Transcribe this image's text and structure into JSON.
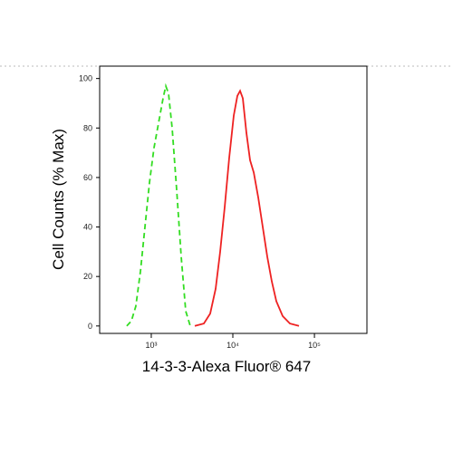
{
  "chart_data": {
    "type": "line",
    "xlabel": "14-3-3-Alexa Fluor® 647",
    "ylabel": "Cell Counts (% Max)",
    "xscale": "log",
    "xlim": [
      233,
      440000
    ],
    "ylim": [
      -3,
      105
    ],
    "xticks": [
      {
        "value": 1000,
        "label": "10³"
      },
      {
        "value": 10000,
        "label": "10⁴"
      },
      {
        "value": 100000,
        "label": "10⁵"
      }
    ],
    "yticks": [
      0,
      20,
      40,
      60,
      80,
      100
    ],
    "series": [
      {
        "color": "#33dd22",
        "dash": true,
        "x": [
          501,
          570,
          647,
          736,
          836,
          950,
          1080,
          1227,
          1394,
          1506,
          1626,
          1801,
          2048,
          2328,
          2644,
          3005
        ],
        "values": [
          0,
          2,
          8,
          22,
          40,
          58,
          72,
          82,
          92,
          97,
          94,
          80,
          55,
          28,
          6,
          0
        ]
      },
      {
        "color": "#ee2222",
        "dash": false,
        "x": [
          3415,
          4410,
          5275,
          6150,
          6985,
          7943,
          9030,
          10260,
          11370,
          12270,
          13250,
          14680,
          16260,
          18030,
          20470,
          23270,
          26430,
          30050,
          34150,
          40830,
          50120,
          64700
        ],
        "values": [
          0,
          1,
          5,
          15,
          30,
          48,
          68,
          85,
          93,
          95,
          92,
          78,
          67,
          62,
          52,
          40,
          28,
          18,
          10,
          4,
          1,
          0
        ]
      }
    ]
  }
}
